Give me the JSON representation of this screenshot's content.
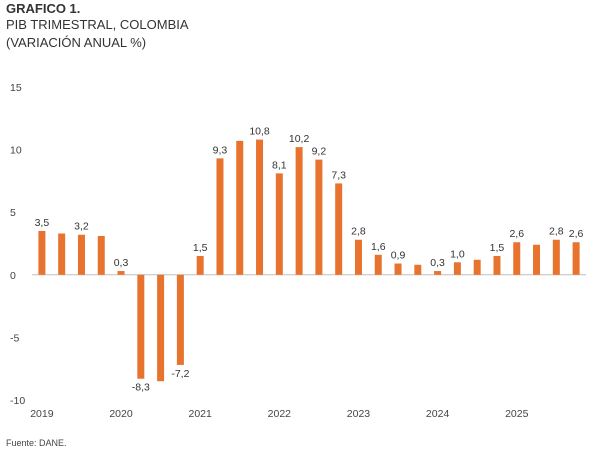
{
  "header": {
    "figure_label": "GRAFICO 1.",
    "title": "PIB TRIMESTRAL, COLOMBIA",
    "subtitle": "(VARIACIÓN ANUAL %)"
  },
  "source": "Fuente: DANE.",
  "colors": {
    "bar": "#E8732E",
    "axis": "#bfbfbf"
  },
  "chart_data": {
    "type": "bar",
    "title": "PIB TRIMESTRAL, COLOMBIA",
    "subtitle": "(VARIACIÓN ANUAL %)",
    "xlabel": "",
    "ylabel": "",
    "ylim": [
      -10,
      15
    ],
    "yticks": [
      -10,
      -5,
      0,
      5,
      10,
      15
    ],
    "grid": false,
    "legend": "none",
    "categories": [
      "2019-T1",
      "2019-T2",
      "2019-T3",
      "2019-T4",
      "2020-T1",
      "2020-T2",
      "2020-T3",
      "2020-T4",
      "2021-T1",
      "2021-T2",
      "2021-T3",
      "2021-T4",
      "2022-T1",
      "2022-T2",
      "2022-T3",
      "2022-T4",
      "2023-T1",
      "2023-T2",
      "2023-T3",
      "2023-T4",
      "2024-T1",
      "2024-T2",
      "2024-T3",
      "2024-T4",
      "2025-T1",
      "2025-T2",
      "2025-T3",
      "2025-T4"
    ],
    "values": [
      3.5,
      3.3,
      3.2,
      3.1,
      0.3,
      -8.3,
      -8.5,
      -7.2,
      1.5,
      9.3,
      10.7,
      10.8,
      8.1,
      10.2,
      9.2,
      7.3,
      2.8,
      1.6,
      0.9,
      0.8,
      0.3,
      1.0,
      1.2,
      1.5,
      2.6,
      2.4,
      2.8,
      2.6
    ],
    "data_labels": [
      {
        "index": 0,
        "text": "3,5"
      },
      {
        "index": 2,
        "text": "3,2"
      },
      {
        "index": 4,
        "text": "0,3"
      },
      {
        "index": 5,
        "text": "-8,3"
      },
      {
        "index": 7,
        "text": "-7,2"
      },
      {
        "index": 8,
        "text": "1,5"
      },
      {
        "index": 9,
        "text": "9,3"
      },
      {
        "index": 11,
        "text": "10,8"
      },
      {
        "index": 12,
        "text": "8,1"
      },
      {
        "index": 13,
        "text": "10,2"
      },
      {
        "index": 14,
        "text": "9,2"
      },
      {
        "index": 15,
        "text": "7,3"
      },
      {
        "index": 16,
        "text": "2,8"
      },
      {
        "index": 17,
        "text": "1,6"
      },
      {
        "index": 18,
        "text": "0,9"
      },
      {
        "index": 20,
        "text": "0,3"
      },
      {
        "index": 21,
        "text": "1,0"
      },
      {
        "index": 23,
        "text": "1,5"
      },
      {
        "index": 24,
        "text": "2,6"
      },
      {
        "index": 26,
        "text": "2,8"
      },
      {
        "index": 27,
        "text": "2,6"
      }
    ],
    "year_labels": [
      {
        "index": 0,
        "text": "2019"
      },
      {
        "index": 4,
        "text": "2020"
      },
      {
        "index": 8,
        "text": "2021"
      },
      {
        "index": 12,
        "text": "2022"
      },
      {
        "index": 16,
        "text": "2023"
      },
      {
        "index": 20,
        "text": "2024"
      },
      {
        "index": 24,
        "text": "2025"
      }
    ]
  }
}
